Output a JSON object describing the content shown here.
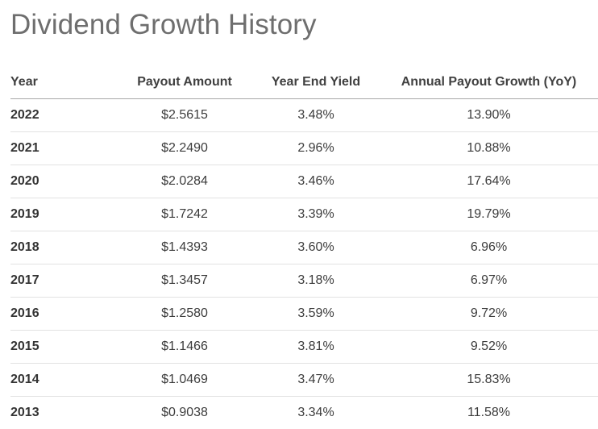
{
  "title": "Dividend Growth History",
  "table": {
    "headers": {
      "year": "Year",
      "payout": "Payout Amount",
      "yield": "Year End Yield",
      "growth": "Annual Payout Growth (YoY)"
    },
    "rows": [
      {
        "year": "2022",
        "payout": "$2.5615",
        "yield": "3.48%",
        "growth": "13.90%"
      },
      {
        "year": "2021",
        "payout": "$2.2490",
        "yield": "2.96%",
        "growth": "10.88%"
      },
      {
        "year": "2020",
        "payout": "$2.0284",
        "yield": "3.46%",
        "growth": "17.64%"
      },
      {
        "year": "2019",
        "payout": "$1.7242",
        "yield": "3.39%",
        "growth": "19.79%"
      },
      {
        "year": "2018",
        "payout": "$1.4393",
        "yield": "3.60%",
        "growth": "6.96%"
      },
      {
        "year": "2017",
        "payout": "$1.3457",
        "yield": "3.18%",
        "growth": "6.97%"
      },
      {
        "year": "2016",
        "payout": "$1.2580",
        "yield": "3.59%",
        "growth": "9.72%"
      },
      {
        "year": "2015",
        "payout": "$1.1466",
        "yield": "3.81%",
        "growth": "9.52%"
      },
      {
        "year": "2014",
        "payout": "$1.0469",
        "yield": "3.47%",
        "growth": "15.83%"
      },
      {
        "year": "2013",
        "payout": "$0.9038",
        "yield": "3.34%",
        "growth": "11.58%"
      }
    ]
  }
}
